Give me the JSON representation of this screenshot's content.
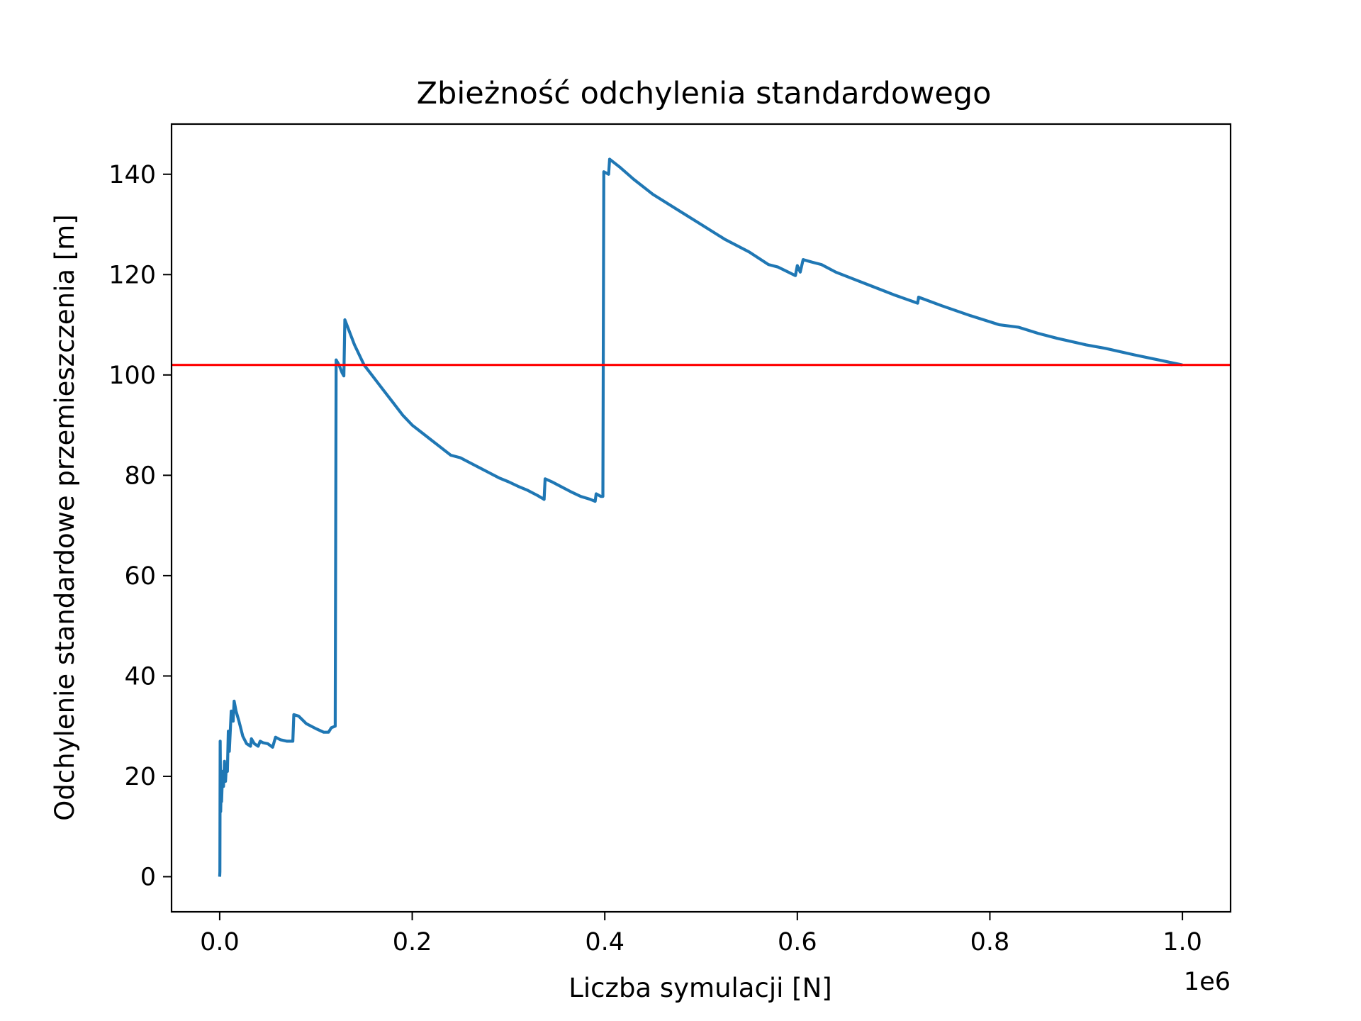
{
  "chart_data": {
    "type": "line",
    "title": "Zbieżność odchylenia standardowego",
    "xlabel": "Liczba symulacji [N]",
    "ylabel": "Odchylenie standardowe przemieszczenia [m]",
    "x_offset_label": "1e6",
    "xlim": [
      -50000,
      1050000
    ],
    "ylim": [
      -7,
      150
    ],
    "x_ticks": [
      0,
      200000,
      400000,
      600000,
      800000,
      1000000
    ],
    "x_tick_labels": [
      "0.0",
      "0.2",
      "0.4",
      "0.6",
      "0.8",
      "1.0"
    ],
    "y_ticks": [
      0,
      20,
      40,
      60,
      80,
      100,
      120,
      140
    ],
    "y_tick_labels": [
      "0",
      "20",
      "40",
      "60",
      "80",
      "100",
      "120",
      "140"
    ],
    "grid": false,
    "series": [
      {
        "color": "#1f77b4",
        "points": [
          [
            0,
            0
          ],
          [
            200,
            1
          ],
          [
            500,
            27
          ],
          [
            1000,
            13
          ],
          [
            1500,
            17
          ],
          [
            2000,
            15
          ],
          [
            3000,
            21
          ],
          [
            4000,
            18
          ],
          [
            5000,
            23
          ],
          [
            6000,
            19
          ],
          [
            7000,
            22
          ],
          [
            8000,
            21
          ],
          [
            9000,
            29
          ],
          [
            10000,
            25
          ],
          [
            12000,
            33
          ],
          [
            14000,
            31
          ],
          [
            15000,
            35
          ],
          [
            17000,
            33
          ],
          [
            20000,
            31
          ],
          [
            24000,
            28
          ],
          [
            28000,
            26.5
          ],
          [
            32000,
            26
          ],
          [
            33000,
            27.5
          ],
          [
            36000,
            26.5
          ],
          [
            40000,
            26
          ],
          [
            42000,
            27
          ],
          [
            45000,
            26.7
          ],
          [
            50000,
            26.5
          ],
          [
            55000,
            25.8
          ],
          [
            58000,
            27.8
          ],
          [
            63000,
            27.3
          ],
          [
            70000,
            27
          ],
          [
            76000,
            27
          ],
          [
            77000,
            32.3
          ],
          [
            82000,
            32
          ],
          [
            90000,
            30.5
          ],
          [
            100000,
            29.5
          ],
          [
            108000,
            28.8
          ],
          [
            113000,
            28.8
          ],
          [
            116000,
            29.7
          ],
          [
            120000,
            30
          ],
          [
            121000,
            103
          ],
          [
            124000,
            102
          ],
          [
            127000,
            100.5
          ],
          [
            129000,
            99.8
          ],
          [
            130000,
            111
          ],
          [
            140000,
            106
          ],
          [
            150000,
            102
          ],
          [
            160000,
            99.5
          ],
          [
            170000,
            97
          ],
          [
            180000,
            94.5
          ],
          [
            190000,
            92
          ],
          [
            200000,
            90
          ],
          [
            210000,
            88.5
          ],
          [
            220000,
            87
          ],
          [
            230000,
            85.5
          ],
          [
            240000,
            84
          ],
          [
            250000,
            83.5
          ],
          [
            260000,
            82.5
          ],
          [
            270000,
            81.5
          ],
          [
            280000,
            80.5
          ],
          [
            290000,
            79.5
          ],
          [
            300000,
            78.7
          ],
          [
            310000,
            77.8
          ],
          [
            320000,
            77
          ],
          [
            330000,
            76
          ],
          [
            337000,
            75.2
          ],
          [
            338000,
            79.3
          ],
          [
            345000,
            78.7
          ],
          [
            355000,
            77.7
          ],
          [
            365000,
            76.7
          ],
          [
            375000,
            75.8
          ],
          [
            385000,
            75.2
          ],
          [
            390000,
            74.8
          ],
          [
            391000,
            76.3
          ],
          [
            396000,
            75.8
          ],
          [
            398000,
            75.8
          ],
          [
            399000,
            140.5
          ],
          [
            404000,
            140
          ],
          [
            405000,
            143
          ],
          [
            415000,
            141.5
          ],
          [
            430000,
            139
          ],
          [
            450000,
            136
          ],
          [
            475000,
            133
          ],
          [
            500000,
            130
          ],
          [
            525000,
            127
          ],
          [
            550000,
            124.5
          ],
          [
            570000,
            122
          ],
          [
            580000,
            121.5
          ],
          [
            598000,
            119.8
          ],
          [
            600000,
            121.8
          ],
          [
            603000,
            120.5
          ],
          [
            606000,
            123
          ],
          [
            615000,
            122.5
          ],
          [
            625000,
            122
          ],
          [
            640000,
            120.5
          ],
          [
            660000,
            119
          ],
          [
            680000,
            117.5
          ],
          [
            700000,
            116
          ],
          [
            725000,
            114.3
          ],
          [
            726000,
            115.5
          ],
          [
            750000,
            113.8
          ],
          [
            780000,
            111.8
          ],
          [
            810000,
            110
          ],
          [
            830000,
            109.5
          ],
          [
            850000,
            108.3
          ],
          [
            870000,
            107.3
          ],
          [
            900000,
            106
          ],
          [
            920000,
            105.3
          ],
          [
            950000,
            104
          ],
          [
            975000,
            103
          ],
          [
            1000000,
            102
          ]
        ]
      }
    ],
    "reference_line": {
      "type": "horizontal",
      "y": 102,
      "color": "#ff0000"
    }
  }
}
